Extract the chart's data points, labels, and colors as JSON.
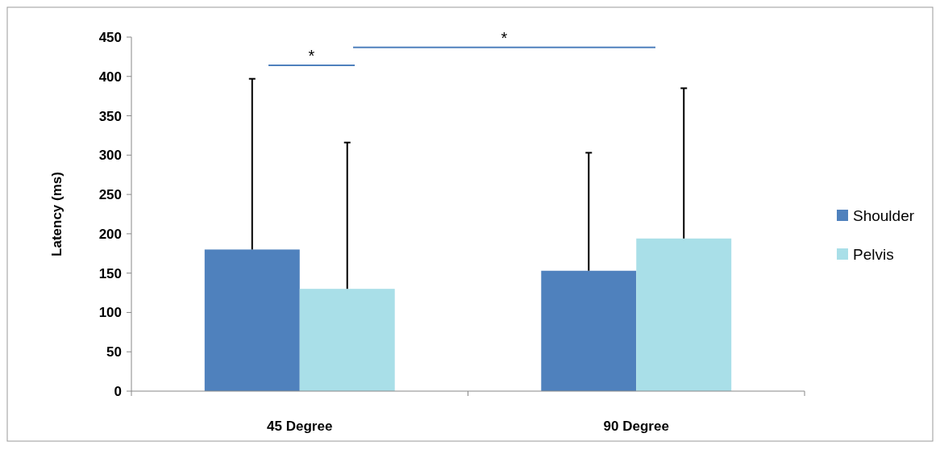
{
  "chart_data": {
    "type": "bar",
    "ylabel": "Latency (ms)",
    "categories": [
      "45 Degree",
      "90 Degree"
    ],
    "series": [
      {
        "name": "Shoulder",
        "color": "#4f81bd",
        "values": [
          180,
          153
        ],
        "errors": [
          [
            180,
            397
          ],
          [
            153,
            303
          ]
        ]
      },
      {
        "name": "Pelvis",
        "color": "#a9dfe8",
        "values": [
          130,
          194
        ],
        "errors": [
          [
            130,
            316
          ],
          [
            194,
            385
          ]
        ]
      }
    ],
    "ylim": [
      0,
      450
    ],
    "yticks": [
      0,
      50,
      100,
      150,
      200,
      250,
      300,
      350,
      400,
      450
    ],
    "grid": false,
    "legend": "right",
    "annotations": [
      "*",
      "*"
    ]
  }
}
